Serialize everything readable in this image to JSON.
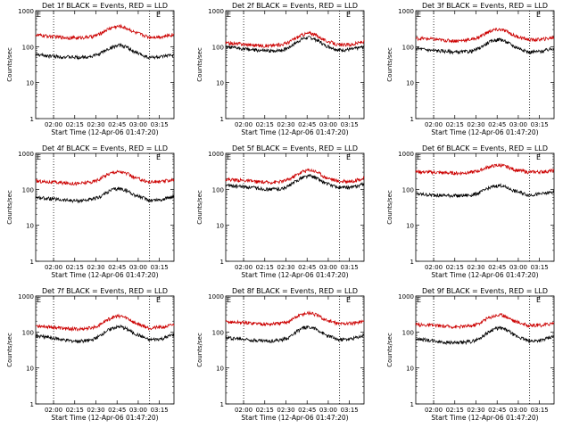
{
  "chart_data": [
    {
      "type": "line",
      "title": "Det 1f BLACK = Events, RED = LLD",
      "xlabel": "Start Time (12-Apr-06 01:47:20)",
      "ylabel": "Counts/sec",
      "yscale": "log",
      "ylim": [
        1,
        1000
      ],
      "ytick_labels": [
        "1",
        "10",
        "100",
        "1000"
      ],
      "xlim_minutes": [
        0,
        98
      ],
      "xtick_labels": [
        "02:00",
        "02:15",
        "02:30",
        "02:45",
        "03:00",
        "03:15"
      ],
      "vertical_marker_minutes": [
        12.7,
        80.7
      ],
      "marker_flag": "E",
      "series": [
        {
          "name": "Events",
          "color": "#000000",
          "x": [
            0,
            10,
            20,
            30,
            40,
            45,
            50,
            55,
            60,
            65,
            70,
            80,
            90,
            98
          ],
          "values": [
            60,
            55,
            52,
            50,
            54,
            62,
            80,
            100,
            110,
            95,
            70,
            50,
            52,
            60
          ]
        },
        {
          "name": "LLD",
          "color": "#cc0000",
          "x": [
            0,
            10,
            20,
            30,
            40,
            45,
            50,
            55,
            60,
            65,
            70,
            80,
            90,
            98
          ],
          "values": [
            210,
            195,
            180,
            175,
            190,
            220,
            290,
            350,
            370,
            320,
            250,
            185,
            190,
            220
          ]
        }
      ]
    },
    {
      "type": "line",
      "title": "Det 2f BLACK = Events, RED = LLD",
      "xlabel": "Start Time (12-Apr-06 01:47:20)",
      "ylabel": "Counts/sec",
      "yscale": "log",
      "ylim": [
        1,
        1000
      ],
      "ytick_labels": [
        "1",
        "10",
        "100",
        "1000"
      ],
      "xlim_minutes": [
        0,
        98
      ],
      "xtick_labels": [
        "02:00",
        "02:15",
        "02:30",
        "02:45",
        "03:00",
        "03:15"
      ],
      "vertical_marker_minutes": [
        12.7,
        80.7
      ],
      "marker_flag": "E",
      "series": [
        {
          "name": "Events",
          "color": "#000000",
          "x": [
            0,
            10,
            20,
            30,
            40,
            45,
            50,
            55,
            60,
            65,
            70,
            80,
            90,
            98
          ],
          "values": [
            95,
            90,
            80,
            75,
            80,
            95,
            130,
            170,
            180,
            150,
            110,
            80,
            85,
            100
          ]
        },
        {
          "name": "LLD",
          "color": "#cc0000",
          "x": [
            0,
            10,
            20,
            30,
            40,
            45,
            50,
            55,
            60,
            65,
            70,
            80,
            90,
            98
          ],
          "values": [
            125,
            120,
            110,
            105,
            115,
            135,
            175,
            220,
            240,
            200,
            150,
            110,
            115,
            140
          ]
        }
      ]
    },
    {
      "type": "line",
      "title": "Det 3f BLACK = Events, RED = LLD",
      "xlabel": "Start Time (12-Apr-06 01:47:20)",
      "ylabel": "Counts/sec",
      "yscale": "log",
      "ylim": [
        1,
        1000
      ],
      "ytick_labels": [
        "1",
        "10",
        "100",
        "1000"
      ],
      "xlim_minutes": [
        0,
        98
      ],
      "xtick_labels": [
        "02:00",
        "02:15",
        "02:30",
        "02:45",
        "03:00",
        "03:15"
      ],
      "vertical_marker_minutes": [
        12.7,
        80.7
      ],
      "marker_flag": "E",
      "series": [
        {
          "name": "Events",
          "color": "#000000",
          "x": [
            0,
            10,
            20,
            30,
            40,
            45,
            50,
            55,
            60,
            65,
            70,
            80,
            90,
            98
          ],
          "values": [
            90,
            80,
            75,
            70,
            75,
            90,
            120,
            150,
            160,
            130,
            100,
            70,
            75,
            90
          ]
        },
        {
          "name": "LLD",
          "color": "#cc0000",
          "x": [
            0,
            10,
            20,
            30,
            40,
            45,
            50,
            55,
            60,
            65,
            70,
            80,
            90,
            98
          ],
          "values": [
            170,
            165,
            150,
            145,
            160,
            185,
            240,
            290,
            300,
            260,
            200,
            155,
            160,
            180
          ]
        }
      ]
    },
    {
      "type": "line",
      "title": "Det 4f BLACK = Events, RED = LLD",
      "xlabel": "Start Time (12-Apr-06 01:47:20)",
      "ylabel": "Counts/sec",
      "yscale": "log",
      "ylim": [
        1,
        1000
      ],
      "ytick_labels": [
        "1",
        "10",
        "100",
        "1000"
      ],
      "xlim_minutes": [
        0,
        98
      ],
      "xtick_labels": [
        "02:00",
        "02:15",
        "02:30",
        "02:45",
        "03:00",
        "03:15"
      ],
      "vertical_marker_minutes": [
        12.7,
        80.7
      ],
      "marker_flag": "E",
      "series": [
        {
          "name": "Events",
          "color": "#000000",
          "x": [
            0,
            10,
            20,
            30,
            40,
            45,
            50,
            55,
            60,
            65,
            70,
            80,
            90,
            98
          ],
          "values": [
            60,
            55,
            50,
            48,
            52,
            60,
            80,
            100,
            105,
            90,
            70,
            50,
            52,
            65
          ]
        },
        {
          "name": "LLD",
          "color": "#cc0000",
          "x": [
            0,
            10,
            20,
            30,
            40,
            45,
            50,
            55,
            60,
            65,
            70,
            80,
            90,
            98
          ],
          "values": [
            170,
            160,
            150,
            145,
            160,
            190,
            250,
            300,
            310,
            270,
            210,
            160,
            165,
            190
          ]
        }
      ]
    },
    {
      "type": "line",
      "title": "Det 5f BLACK = Events, RED = LLD",
      "xlabel": "Start Time (12-Apr-06 01:47:20)",
      "ylabel": "Counts/sec",
      "yscale": "log",
      "ylim": [
        1,
        1000
      ],
      "ytick_labels": [
        "1",
        "10",
        "100",
        "1000"
      ],
      "xlim_minutes": [
        0,
        98
      ],
      "xtick_labels": [
        "02:00",
        "02:15",
        "02:30",
        "02:45",
        "03:00",
        "03:15"
      ],
      "vertical_marker_minutes": [
        12.7,
        80.7
      ],
      "marker_flag": "E",
      "series": [
        {
          "name": "Events",
          "color": "#000000",
          "x": [
            0,
            10,
            20,
            30,
            40,
            45,
            50,
            55,
            60,
            65,
            70,
            80,
            90,
            98
          ],
          "values": [
            130,
            120,
            110,
            100,
            105,
            125,
            170,
            220,
            240,
            200,
            150,
            110,
            115,
            140
          ]
        },
        {
          "name": "LLD",
          "color": "#cc0000",
          "x": [
            0,
            10,
            20,
            30,
            40,
            45,
            50,
            55,
            60,
            65,
            70,
            80,
            90,
            98
          ],
          "values": [
            190,
            180,
            165,
            155,
            165,
            190,
            250,
            320,
            350,
            300,
            220,
            165,
            170,
            200
          ]
        }
      ]
    },
    {
      "type": "line",
      "title": "Det 6f BLACK = Events, RED = LLD",
      "xlabel": "Start Time (12-Apr-06 01:47:20)",
      "ylabel": "Counts/sec",
      "yscale": "log",
      "ylim": [
        1,
        1000
      ],
      "ytick_labels": [
        "1",
        "10",
        "100",
        "1000"
      ],
      "xlim_minutes": [
        0,
        98
      ],
      "xtick_labels": [
        "02:00",
        "02:15",
        "02:30",
        "02:45",
        "03:00",
        "03:15"
      ],
      "vertical_marker_minutes": [
        12.7,
        80.7
      ],
      "marker_flag": "E",
      "series": [
        {
          "name": "Events",
          "color": "#000000",
          "x": [
            0,
            10,
            20,
            30,
            40,
            45,
            50,
            55,
            60,
            65,
            70,
            80,
            90,
            98
          ],
          "values": [
            75,
            70,
            68,
            66,
            70,
            80,
            100,
            120,
            130,
            110,
            90,
            70,
            75,
            85
          ]
        },
        {
          "name": "LLD",
          "color": "#cc0000",
          "x": [
            0,
            10,
            20,
            30,
            40,
            45,
            50,
            55,
            60,
            65,
            70,
            80,
            90,
            98
          ],
          "values": [
            310,
            300,
            290,
            280,
            300,
            330,
            400,
            450,
            470,
            420,
            350,
            300,
            310,
            330
          ]
        }
      ]
    },
    {
      "type": "line",
      "title": "Det 7f BLACK = Events, RED = LLD",
      "xlabel": "Start Time (12-Apr-06 01:47:20)",
      "ylabel": "Counts/sec",
      "yscale": "log",
      "ylim": [
        1,
        1000
      ],
      "ytick_labels": [
        "1",
        "10",
        "100",
        "1000"
      ],
      "xlim_minutes": [
        0,
        98
      ],
      "xtick_labels": [
        "02:00",
        "02:15",
        "02:30",
        "02:45",
        "03:00",
        "03:15"
      ],
      "vertical_marker_minutes": [
        12.7,
        80.7
      ],
      "marker_flag": "E",
      "series": [
        {
          "name": "Events",
          "color": "#000000",
          "x": [
            0,
            10,
            20,
            30,
            40,
            45,
            50,
            55,
            60,
            65,
            70,
            80,
            90,
            98
          ],
          "values": [
            80,
            70,
            60,
            55,
            60,
            75,
            105,
            130,
            140,
            120,
            90,
            60,
            65,
            85
          ]
        },
        {
          "name": "LLD",
          "color": "#cc0000",
          "x": [
            0,
            10,
            20,
            30,
            40,
            45,
            50,
            55,
            60,
            65,
            70,
            80,
            90,
            98
          ],
          "values": [
            150,
            140,
            125,
            120,
            130,
            155,
            210,
            260,
            280,
            240,
            180,
            130,
            135,
            160
          ]
        }
      ]
    },
    {
      "type": "line",
      "title": "Det 8f BLACK = Events, RED = LLD",
      "xlabel": "Start Time (12-Apr-06 01:47:20)",
      "ylabel": "Counts/sec",
      "yscale": "log",
      "ylim": [
        1,
        1000
      ],
      "ytick_labels": [
        "1",
        "10",
        "100",
        "1000"
      ],
      "xlim_minutes": [
        0,
        98
      ],
      "xtick_labels": [
        "02:00",
        "02:15",
        "02:30",
        "02:45",
        "03:00",
        "03:15"
      ],
      "vertical_marker_minutes": [
        12.7,
        80.7
      ],
      "marker_flag": "E",
      "series": [
        {
          "name": "Events",
          "color": "#000000",
          "x": [
            0,
            10,
            20,
            30,
            40,
            45,
            50,
            55,
            60,
            65,
            70,
            80,
            90,
            98
          ],
          "values": [
            70,
            65,
            60,
            56,
            60,
            72,
            100,
            130,
            140,
            115,
            85,
            60,
            65,
            80
          ]
        },
        {
          "name": "LLD",
          "color": "#cc0000",
          "x": [
            0,
            10,
            20,
            30,
            40,
            45,
            50,
            55,
            60,
            65,
            70,
            80,
            90,
            98
          ],
          "values": [
            190,
            185,
            175,
            165,
            175,
            200,
            260,
            320,
            340,
            290,
            220,
            170,
            175,
            200
          ]
        }
      ]
    },
    {
      "type": "line",
      "title": "Det 9f BLACK = Events, RED = LLD",
      "xlabel": "Start Time (12-Apr-06 01:47:20)",
      "ylabel": "Counts/sec",
      "yscale": "log",
      "ylim": [
        1,
        1000
      ],
      "ytick_labels": [
        "1",
        "10",
        "100",
        "1000"
      ],
      "xlim_minutes": [
        0,
        98
      ],
      "xtick_labels": [
        "02:00",
        "02:15",
        "02:30",
        "02:45",
        "03:00",
        "03:15"
      ],
      "vertical_marker_minutes": [
        12.7,
        80.7
      ],
      "marker_flag": "E",
      "series": [
        {
          "name": "Events",
          "color": "#000000",
          "x": [
            0,
            10,
            20,
            30,
            40,
            45,
            50,
            55,
            60,
            65,
            70,
            80,
            90,
            98
          ],
          "values": [
            65,
            58,
            52,
            50,
            55,
            65,
            90,
            120,
            130,
            110,
            80,
            55,
            60,
            75
          ]
        },
        {
          "name": "LLD",
          "color": "#cc0000",
          "x": [
            0,
            10,
            20,
            30,
            40,
            45,
            50,
            55,
            60,
            65,
            70,
            80,
            90,
            98
          ],
          "values": [
            160,
            155,
            145,
            140,
            150,
            175,
            230,
            280,
            300,
            260,
            200,
            150,
            155,
            180
          ]
        }
      ]
    }
  ]
}
